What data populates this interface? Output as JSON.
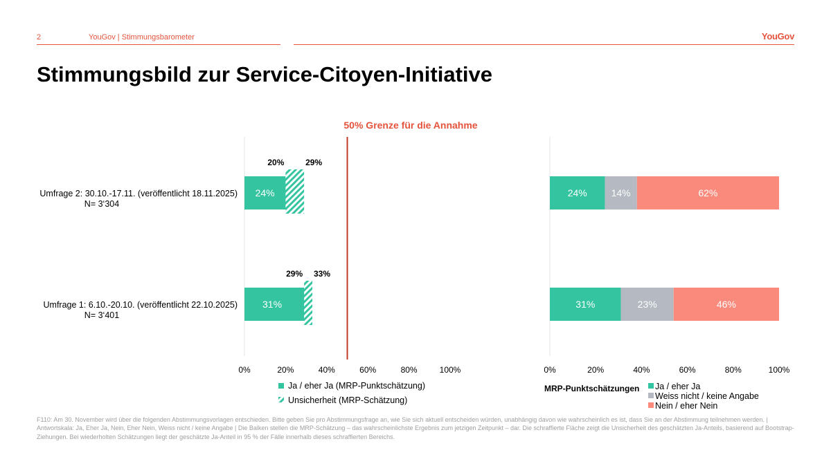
{
  "header": {
    "page_number": "2",
    "title": "YouGov | Stimmungsbarometer",
    "logo": "YouGov"
  },
  "page_title": "Stimmungsbild zur Service-Citoyen-Initiative",
  "colors": {
    "accent": "#e5533c",
    "ja": "#34c5a0",
    "weiss_nicht": "#b4b9c2",
    "nein": "#fa8a7b",
    "threshold": "#c0392b"
  },
  "chart_data": [
    {
      "type": "bar",
      "orientation": "horizontal",
      "title": "50% Grenze für die Annahme",
      "threshold": 50,
      "xlim": [
        0,
        100
      ],
      "ticks": [
        "0%",
        "20%",
        "40%",
        "60%",
        "80%",
        "100%"
      ],
      "categories": [
        {
          "label": "Umfrage 2: 30.10.-17.11. (veröffentlicht 18.11.2025)",
          "n": "N= 3‘304"
        },
        {
          "label": "Umfrage 1: 6.10.-20.10. (veröffentlicht 22.10.2025)",
          "n": "N= 3‘401"
        }
      ],
      "series": [
        {
          "name": "Ja / eher Ja (MRP-Punktschätzung)",
          "values": [
            24,
            31
          ],
          "labels": [
            "24%",
            "31%"
          ]
        },
        {
          "name": "Unsicherheit (MRP-Schätzung)",
          "lower": [
            20,
            29
          ],
          "upper": [
            29,
            33
          ],
          "lower_labels": [
            "20%",
            "29%"
          ],
          "upper_labels": [
            "29%",
            "33%"
          ]
        }
      ]
    },
    {
      "type": "bar",
      "orientation": "horizontal",
      "stacked": true,
      "xlim": [
        0,
        100
      ],
      "ticks": [
        "0%",
        "20%",
        "40%",
        "60%",
        "80%",
        "100%"
      ],
      "legend_title": "MRP-Punktschätzungen",
      "series": [
        {
          "name": "Ja / eher Ja",
          "values": [
            24,
            31
          ],
          "labels": [
            "24%",
            "31%"
          ]
        },
        {
          "name": "Weiss nicht / keine Angabe",
          "values": [
            14,
            23
          ],
          "labels": [
            "14%",
            "23%"
          ]
        },
        {
          "name": "Nein / eher Nein",
          "values": [
            62,
            46
          ],
          "labels": [
            "62%",
            "46%"
          ]
        }
      ]
    }
  ],
  "footnote": "F110: Am 30. November wird über die folgenden Abstimmungsvorlagen entschieden. Bitte geben Sie pro Abstimmungsfrage an, wie Sie sich aktuell entscheiden würden, unabhängig davon wie wahrscheinlich es ist, dass Sie an der Abstimmung teilnehmen werden. | Antwortskala: Ja, Eher Ja, Nein, Eher Nein, Weiss nicht / keine Angabe | Die Balken stellen die MRP-Schätzung – das wahrscheinlichste Ergebnis zum jetzigen Zeitpunkt – dar. Die schraffierte Fläche zeigt die Unsicherheit des geschätzten Ja-Anteils, basierend auf Bootstrap-Ziehungen. Bei wiederholten Schätzungen liegt der geschätzte Ja-Anteil in 95 % der Fälle innerhalb dieses schraffierten Bereichs."
}
